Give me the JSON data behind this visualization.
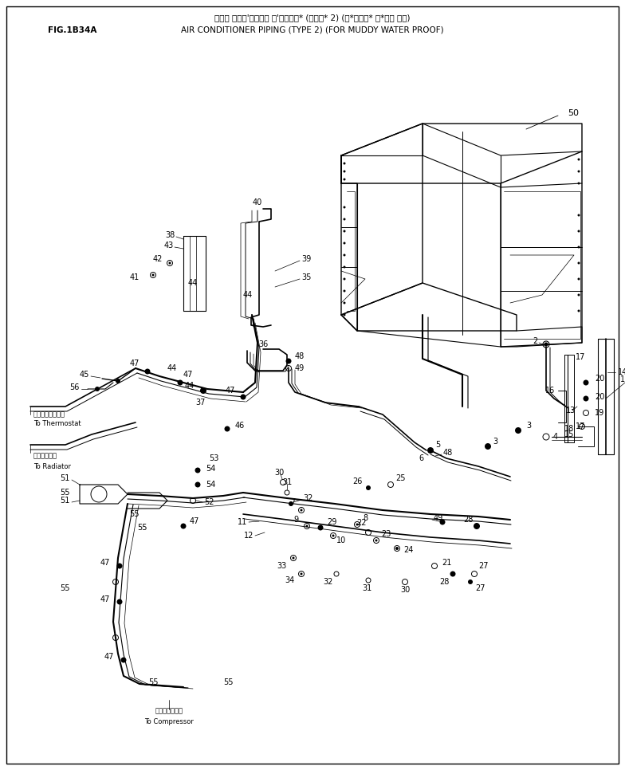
{
  "title_japanese": "エアー コンデ'イショナ パ'イピング* (タイプ* 2) (ト*ロミス* ボ*ウジ ヨウ)",
  "title_english": "AIR CONDITIONER PIPING (TYPE 2) (FOR MUDDY WATER PROOF)",
  "fig_label": "FIG.1B34A",
  "bg_color": "#ffffff",
  "lc": "#000000",
  "tc": "#000000"
}
